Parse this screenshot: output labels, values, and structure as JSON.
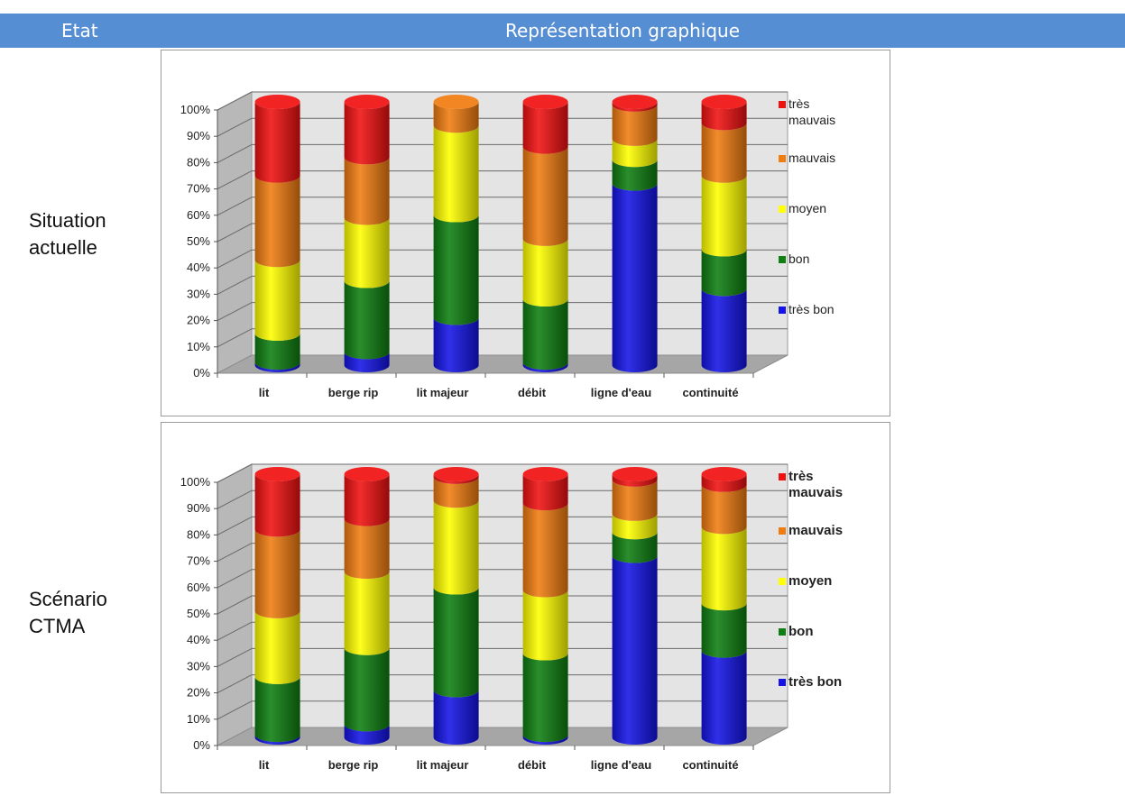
{
  "header": {
    "col1": "Etat",
    "col2": "Représentation graphique"
  },
  "rows": [
    {
      "label_lines": [
        "Situation",
        "actuelle"
      ]
    },
    {
      "label_lines": [
        "Scénario",
        "CTMA"
      ]
    }
  ],
  "colors": {
    "header_bg": "#568ed4",
    "tres_bon": "#1414e6",
    "bon": "#0e7f10",
    "moyen": "#ffff00",
    "mauvais": "#f07c10",
    "tres_mauvais": "#f01010"
  },
  "chart_data": [
    {
      "type": "bar",
      "stacked": true,
      "categories": [
        "lit",
        "berge rip",
        "lit majeur",
        "débit",
        "ligne d'eau",
        "continuité"
      ],
      "y_ticks": [
        "0%",
        "10%",
        "20%",
        "30%",
        "40%",
        "50%",
        "60%",
        "70%",
        "80%",
        "90%",
        "100%"
      ],
      "ylim": [
        0,
        100
      ],
      "legend_position": "right",
      "legend_bold": false,
      "series": [
        {
          "name": "très bon",
          "values": [
            1,
            5,
            18,
            1,
            69,
            29
          ]
        },
        {
          "name": "bon",
          "values": [
            11,
            27,
            39,
            24,
            9,
            15
          ]
        },
        {
          "name": "moyen",
          "values": [
            28,
            24,
            34,
            23,
            8,
            28
          ]
        },
        {
          "name": "mauvais",
          "values": [
            32,
            23,
            9,
            35,
            13,
            20
          ]
        },
        {
          "name": "très mauvais",
          "values": [
            28,
            21,
            0,
            17,
            1,
            8
          ]
        }
      ],
      "legend_order": [
        "très mauvais",
        "mauvais",
        "moyen",
        "bon",
        "très bon"
      ],
      "legend_lines": {
        "très mauvais": [
          "très",
          "mauvais"
        ]
      }
    },
    {
      "type": "bar",
      "stacked": true,
      "categories": [
        "lit",
        "berge rip",
        "lit majeur",
        "débit",
        "ligne d'eau",
        "continuité"
      ],
      "y_ticks": [
        "0%",
        "10%",
        "20%",
        "30%",
        "40%",
        "50%",
        "60%",
        "70%",
        "80%",
        "90%",
        "100%"
      ],
      "ylim": [
        0,
        100
      ],
      "legend_position": "right",
      "legend_bold": true,
      "series": [
        {
          "name": "très bon",
          "values": [
            1,
            5,
            18,
            1,
            69,
            33
          ]
        },
        {
          "name": "bon",
          "values": [
            22,
            29,
            39,
            31,
            9,
            18
          ]
        },
        {
          "name": "moyen",
          "values": [
            25,
            29,
            33,
            24,
            7,
            29
          ]
        },
        {
          "name": "mauvais",
          "values": [
            31,
            20,
            9,
            33,
            13,
            16
          ]
        },
        {
          "name": "très mauvais",
          "values": [
            21,
            17,
            1,
            11,
            2,
            4
          ]
        }
      ],
      "legend_order": [
        "très mauvais",
        "mauvais",
        "moyen",
        "bon",
        "très bon"
      ],
      "legend_lines": {
        "très mauvais": [
          "très",
          "mauvais"
        ]
      }
    }
  ]
}
